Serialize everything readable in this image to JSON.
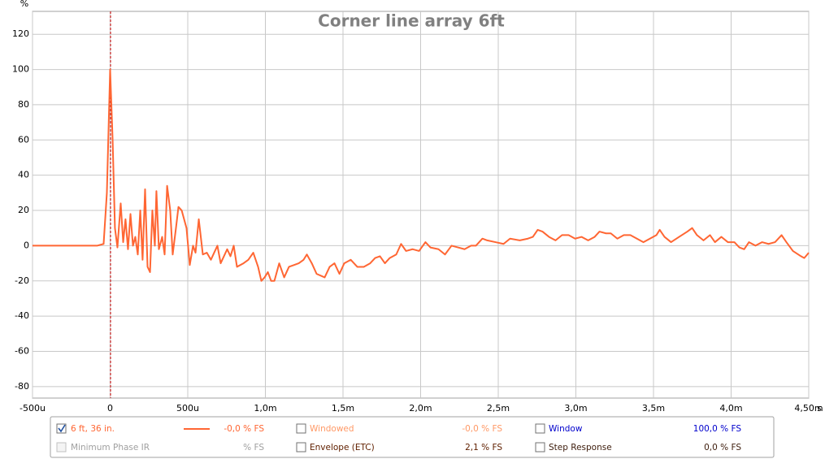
{
  "chart_data": {
    "type": "line",
    "title": "Corner line array 6ft",
    "x_label": "s",
    "y_label": "%",
    "xlim": [
      -0.0005,
      0.0045
    ],
    "ylim": [
      -86.5,
      133
    ],
    "xticks": [
      {
        "value": -0.0005,
        "label": "-500u"
      },
      0,
      {
        "value": 0.0005,
        "label": "500u"
      },
      {
        "value": 0.001,
        "label": "1,0m"
      },
      {
        "value": 0.0015,
        "label": "1,5m"
      },
      {
        "value": 0.002,
        "label": "2,0m"
      },
      {
        "value": 0.0025,
        "label": "2,5m"
      },
      {
        "value": 0.003,
        "label": "3,0m"
      },
      {
        "value": 0.0035,
        "label": "3,5m"
      },
      {
        "value": 0.004,
        "label": "4,0m"
      },
      {
        "value": 0.0045,
        "label": "4,50m"
      }
    ],
    "yticks": [
      -80,
      -60,
      -40,
      -20,
      0,
      20,
      40,
      60,
      80,
      100,
      120
    ],
    "grid": true,
    "series": [
      {
        "name": "6 ft, 36 in.",
        "color": "#ff6633",
        "x": [
          -0.0005,
          -8.4e-05,
          -4.2e-05,
          -2.1e-05,
          0,
          1.6e-05,
          3.1e-05,
          4.7e-05,
          6.8e-05,
          8.4e-05,
          9.9e-05,
          0.000115,
          0.000131,
          0.000147,
          0.000162,
          0.000178,
          0.000194,
          0.000209,
          0.000225,
          0.000241,
          0.000257,
          0.000272,
          0.000288,
          0.000298,
          0.000314,
          0.000335,
          0.000351,
          0.000367,
          0.000387,
          0.000403,
          0.000424,
          0.00044,
          0.000461,
          0.000492,
          0.000513,
          0.000534,
          0.00055,
          0.000571,
          0.000597,
          0.000623,
          0.000649,
          0.00067,
          0.000691,
          0.000712,
          0.000733,
          0.000754,
          0.000775,
          0.000796,
          0.000817,
          0.000859,
          0.00089,
          0.000922,
          0.000953,
          0.000974,
          0.000995,
          0.001016,
          0.001037,
          0.001058,
          0.001089,
          0.001121,
          0.001152,
          0.001183,
          0.001215,
          0.001246,
          0.001267,
          0.001299,
          0.00133,
          0.001382,
          0.001414,
          0.001445,
          0.001477,
          0.001508,
          0.00155,
          0.001592,
          0.001634,
          0.001675,
          0.001707,
          0.001738,
          0.00177,
          0.001801,
          0.001843,
          0.001874,
          0.001906,
          0.001948,
          0.00199,
          0.002031,
          0.002063,
          0.002115,
          0.002157,
          0.002199,
          0.002241,
          0.002283,
          0.002325,
          0.002356,
          0.002398,
          0.002429,
          0.002482,
          0.002534,
          0.002576,
          0.002639,
          0.002691,
          0.002723,
          0.002754,
          0.002785,
          0.002827,
          0.002869,
          0.002911,
          0.002953,
          0.002995,
          0.003037,
          0.003079,
          0.003121,
          0.003152,
          0.003194,
          0.003225,
          0.003267,
          0.003309,
          0.003351,
          0.003393,
          0.003435,
          0.003477,
          0.003519,
          0.00354,
          0.003571,
          0.003613,
          0.003665,
          0.003718,
          0.003749,
          0.00378,
          0.003822,
          0.003864,
          0.003896,
          0.003937,
          0.003979,
          0.004021,
          0.004053,
          0.004084,
          0.004115,
          0.004157,
          0.004199,
          0.004241,
          0.004283,
          0.004325,
          0.004356,
          0.004398,
          0.00445,
          0.004471,
          0.0045
        ],
        "values": [
          0,
          0,
          1,
          30,
          100,
          60,
          10,
          -1,
          24,
          2,
          15,
          -2,
          18,
          0,
          5,
          -5,
          20,
          -8,
          32,
          -12,
          -15,
          20,
          0,
          31,
          -2,
          5,
          -5,
          34,
          20,
          -5,
          10,
          22,
          20,
          10,
          -11,
          0,
          -4,
          15,
          -5,
          -4,
          -8,
          -4,
          0,
          -10,
          -6,
          -2,
          -6,
          0,
          -12,
          -10,
          -8,
          -4,
          -12,
          -20,
          -18,
          -15,
          -20,
          -20,
          -10,
          -18,
          -12,
          -11,
          -10,
          -8,
          -5,
          -10,
          -16,
          -18,
          -12,
          -10,
          -16,
          -10,
          -8,
          -12,
          -12,
          -10,
          -7,
          -6,
          -10,
          -7,
          -5,
          1,
          -3,
          -2,
          -3,
          2,
          -1,
          -2,
          -5,
          0,
          -1,
          -2,
          0,
          0,
          4,
          3,
          2,
          1,
          4,
          3,
          4,
          5,
          9,
          8,
          5,
          3,
          6,
          6,
          4,
          5,
          3,
          5,
          8,
          7,
          7,
          4,
          6,
          6,
          4,
          2,
          4,
          6,
          9,
          5,
          2,
          5,
          8,
          10,
          6,
          3,
          6,
          2,
          5,
          2,
          2,
          -1,
          -2,
          2,
          0,
          2,
          1,
          2,
          6,
          2,
          -3,
          -6,
          -7,
          -4
        ]
      }
    ]
  },
  "panel": {
    "level": "-0,0 % FS",
    "windowed": "Windowed",
    "windowed_level": "-0,0 % FS",
    "window": "Window",
    "window_level": "100,0 % FS",
    "min_phase": "Minimum Phase IR",
    "min_phase_level": "% FS",
    "envelope": "Envelope (ETC)",
    "envelope_level": "2,1 % FS",
    "step": "Step Response",
    "step_level": "0,0 % FS"
  }
}
